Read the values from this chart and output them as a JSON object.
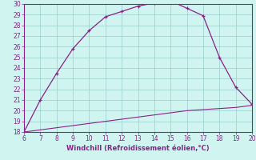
{
  "xlabel": "Windchill (Refroidissement éolien,°C)",
  "x_windchill": [
    6,
    7,
    8,
    9,
    10,
    11,
    12,
    13,
    14,
    15,
    16,
    17,
    18,
    19,
    20
  ],
  "y_windchill": [
    18.0,
    21.0,
    23.5,
    25.8,
    27.5,
    28.8,
    29.3,
    29.8,
    30.1,
    30.3,
    29.6,
    28.9,
    25.0,
    22.2,
    20.6
  ],
  "x_temp": [
    6,
    7,
    8,
    9,
    10,
    11,
    12,
    13,
    14,
    15,
    16,
    17,
    18,
    19,
    20
  ],
  "y_temp": [
    18.0,
    18.2,
    18.4,
    18.6,
    18.8,
    19.0,
    19.2,
    19.4,
    19.6,
    19.8,
    20.0,
    20.1,
    20.2,
    20.3,
    20.5
  ],
  "line_color": "#882288",
  "bg_color": "#d0f5f0",
  "grid_color": "#99cccc",
  "xlim": [
    6,
    20
  ],
  "ylim": [
    18,
    30
  ],
  "xticks": [
    6,
    7,
    8,
    9,
    10,
    11,
    12,
    13,
    14,
    15,
    16,
    17,
    18,
    19,
    20
  ],
  "yticks": [
    18,
    19,
    20,
    21,
    22,
    23,
    24,
    25,
    26,
    27,
    28,
    29,
    30
  ],
  "tick_fontsize": 5.5,
  "xlabel_fontsize": 6.0
}
